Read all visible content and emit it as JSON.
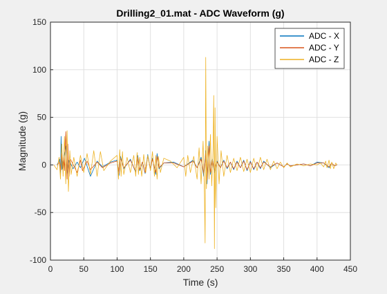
{
  "chart_data": {
    "type": "line",
    "title": "Drilling2_01.mat - ADC Waveform (g)",
    "xlabel": "Time (s)",
    "ylabel": "Magnitude (g)",
    "xlim": [
      0,
      450
    ],
    "ylim": [
      -100,
      150
    ],
    "xticks": [
      0,
      50,
      100,
      150,
      200,
      250,
      300,
      350,
      400,
      450
    ],
    "yticks": [
      -100,
      -50,
      0,
      50,
      100,
      150
    ],
    "grid": true,
    "legend_position": "top-right",
    "series": [
      {
        "name": "ADC - X",
        "color": "#0072BD",
        "x": [
          10,
          14,
          15,
          16,
          17,
          18,
          19,
          20,
          23,
          25,
          28,
          34,
          40,
          45,
          51,
          60,
          70,
          78,
          90,
          100,
          103,
          105,
          110,
          120,
          128,
          131,
          134,
          138,
          142,
          146,
          150,
          153,
          158,
          160,
          163,
          170,
          185,
          200,
          214,
          220,
          226,
          230,
          233,
          235,
          238,
          240,
          243,
          246,
          250,
          255,
          260,
          265,
          270,
          275,
          280,
          285,
          290,
          295,
          300,
          305,
          310,
          315,
          320,
          330,
          340,
          350,
          355,
          360,
          380,
          390,
          400,
          410,
          418,
          422,
          426,
          430
        ],
        "y": [
          0,
          6,
          -12,
          30,
          -5,
          4,
          -3,
          8,
          20,
          -10,
          5,
          -4,
          3,
          -3,
          7,
          -12,
          4,
          -2,
          3,
          5,
          -11,
          9,
          -4,
          6,
          -8,
          10,
          -6,
          3,
          -9,
          11,
          -5,
          7,
          -10,
          12,
          -4,
          2,
          3,
          -2,
          5,
          -3,
          8,
          -12,
          15,
          -20,
          25,
          -10,
          6,
          -8,
          4,
          -3,
          5,
          -4,
          3,
          -5,
          4,
          -3,
          5,
          -6,
          4,
          -5,
          3,
          -4,
          4,
          -3,
          2,
          -2,
          1,
          -1,
          1,
          -1,
          3,
          2,
          -3,
          2,
          -1,
          0
        ]
      },
      {
        "name": "ADC - Y",
        "color": "#D95319",
        "x": [
          10,
          14,
          15,
          17,
          18,
          20,
          21,
          23,
          25,
          26,
          28,
          30,
          40,
          45,
          48,
          55,
          60,
          70,
          78,
          90,
          100,
          103,
          105,
          110,
          120,
          128,
          131,
          134,
          138,
          142,
          146,
          150,
          153,
          158,
          160,
          163,
          170,
          185,
          200,
          214,
          220,
          226,
          230,
          233,
          235,
          238,
          240,
          243,
          246,
          250,
          255,
          260,
          265,
          270,
          275,
          280,
          285,
          290,
          295,
          300,
          305,
          310,
          315,
          320,
          330,
          340,
          350,
          355,
          360,
          380,
          390,
          400,
          410,
          418,
          422,
          426,
          430
        ],
        "y": [
          0,
          3,
          -6,
          12,
          -4,
          8,
          -6,
          35,
          -15,
          22,
          -12,
          6,
          -8,
          5,
          -6,
          4,
          -5,
          3,
          -3,
          2,
          4,
          -9,
          7,
          -3,
          5,
          -7,
          8,
          -5,
          3,
          -8,
          9,
          -4,
          6,
          -8,
          9,
          -3,
          2,
          2,
          -2,
          4,
          -3,
          6,
          -9,
          12,
          -16,
          20,
          -8,
          5,
          -6,
          3,
          -3,
          4,
          -3,
          3,
          -4,
          3,
          -3,
          4,
          -5,
          3,
          -4,
          3,
          -3,
          3,
          -2,
          2,
          -2,
          1,
          -1,
          1,
          -1,
          2,
          2,
          -2,
          2,
          -1,
          0
        ]
      },
      {
        "name": "ADC - Z",
        "color": "#EDB120",
        "x": [
          5,
          10,
          13,
          15,
          17,
          19,
          21,
          23,
          25,
          27,
          29,
          31,
          35,
          40,
          45,
          50,
          55,
          60,
          65,
          70,
          75,
          80,
          90,
          100,
          102,
          104,
          106,
          108,
          110,
          115,
          120,
          125,
          128,
          130,
          132,
          134,
          137,
          140,
          143,
          146,
          150,
          153,
          156,
          158,
          160,
          162,
          165,
          170,
          180,
          190,
          200,
          203,
          206,
          210,
          215,
          220,
          223,
          226,
          229,
          231,
          232,
          233,
          234,
          236,
          238,
          240,
          242,
          244,
          245,
          246,
          247,
          248,
          250,
          253,
          256,
          260,
          265,
          270,
          275,
          280,
          285,
          290,
          295,
          300,
          305,
          310,
          315,
          320,
          325,
          330,
          335,
          340,
          345,
          350,
          355,
          360,
          370,
          380,
          390,
          400,
          405,
          410,
          413,
          415,
          418,
          420,
          422,
          425,
          428,
          430
        ],
        "y": [
          0,
          -5,
          8,
          -15,
          22,
          -12,
          30,
          -20,
          36,
          -28,
          15,
          -10,
          8,
          -12,
          10,
          -8,
          12,
          -10,
          15,
          -12,
          14,
          -6,
          4,
          10,
          -15,
          16,
          -12,
          14,
          -10,
          8,
          -8,
          10,
          -12,
          13,
          -10,
          8,
          -12,
          11,
          -8,
          10,
          -6,
          14,
          -12,
          10,
          -15,
          9,
          -8,
          7,
          4,
          -3,
          8,
          -12,
          10,
          -8,
          9,
          -15,
          18,
          -20,
          25,
          -30,
          -82,
          113,
          -25,
          20,
          -15,
          32,
          -22,
          18,
          73,
          -88,
          60,
          -45,
          30,
          -20,
          15,
          -12,
          10,
          -8,
          7,
          -6,
          8,
          -7,
          6,
          -8,
          7,
          -6,
          8,
          -5,
          6,
          -5,
          4,
          -4,
          3,
          -3,
          2,
          -2,
          1,
          -1,
          1,
          0,
          2,
          -2,
          4,
          -3,
          5,
          -4,
          3,
          -4,
          2,
          0
        ]
      }
    ]
  }
}
